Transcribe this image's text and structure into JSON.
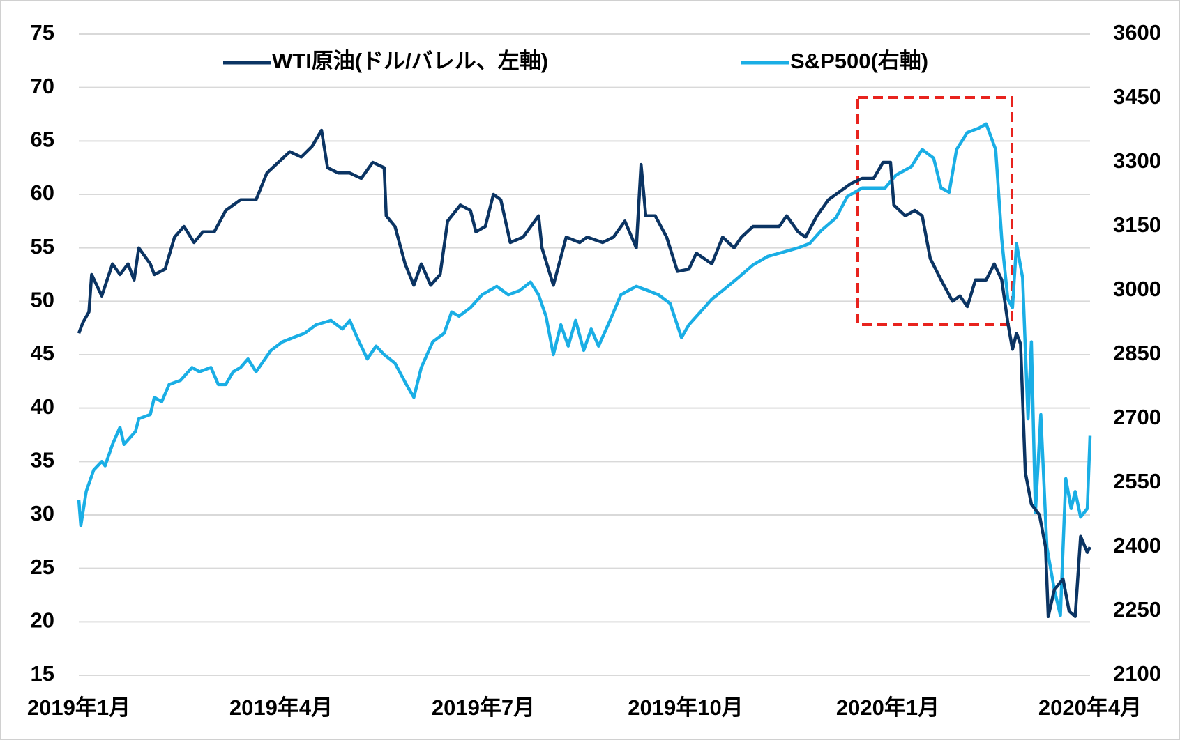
{
  "chart_data": {
    "type": "line",
    "xlim": [
      0,
      15
    ],
    "xticks": [
      {
        "value": 0,
        "label": "2019年1月"
      },
      {
        "value": 3,
        "label": "2019年4月"
      },
      {
        "value": 6,
        "label": "2019年7月"
      },
      {
        "value": 9,
        "label": "2019年10月"
      },
      {
        "value": 12,
        "label": "2020年1月"
      },
      {
        "value": 15,
        "label": "2020年4月"
      }
    ],
    "ylim": [
      15,
      75
    ],
    "yticks": [
      15,
      20,
      25,
      30,
      35,
      40,
      45,
      50,
      55,
      60,
      65,
      70,
      75
    ],
    "y2lim": [
      2100,
      3600
    ],
    "y2ticks": [
      2100,
      2250,
      2400,
      2550,
      2700,
      2850,
      3000,
      3150,
      3300,
      3450,
      3600
    ],
    "grid": true,
    "legend": "top",
    "series": [
      {
        "name": "WTI原油(ドル/バレル、左軸)",
        "color": "#0b3463",
        "axis": "y",
        "x": [
          0,
          0.06,
          0.15,
          0.19,
          0.34,
          0.5,
          0.61,
          0.73,
          0.82,
          0.89,
          1.06,
          1.12,
          1.28,
          1.42,
          1.56,
          1.71,
          1.84,
          2.01,
          2.18,
          2.4,
          2.63,
          2.79,
          2.96,
          3.13,
          3.3,
          3.46,
          3.6,
          3.69,
          3.85,
          4.02,
          4.19,
          4.36,
          4.53,
          4.56,
          4.69,
          4.84,
          4.97,
          5.08,
          5.22,
          5.36,
          5.47,
          5.66,
          5.81,
          5.89,
          6.03,
          6.15,
          6.26,
          6.4,
          6.59,
          6.82,
          6.87,
          7.04,
          7.23,
          7.43,
          7.54,
          7.77,
          7.93,
          8.1,
          8.27,
          8.34,
          8.41,
          8.55,
          8.72,
          8.88,
          9.05,
          9.16,
          9.39,
          9.55,
          9.72,
          9.83,
          10,
          10.22,
          10.39,
          10.5,
          10.67,
          10.78,
          10.95,
          11.12,
          11.34,
          11.45,
          11.62,
          11.79,
          11.93,
          12.04,
          12.09,
          12.26,
          12.4,
          12.51,
          12.63,
          12.79,
          12.96,
          13.07,
          13.18,
          13.3,
          13.46,
          13.58,
          13.69,
          13.78,
          13.85,
          13.91,
          13.97,
          14.04,
          14.13,
          14.25,
          14.34,
          14.38,
          14.47,
          14.6,
          14.69,
          14.78,
          14.86,
          14.96,
          15
        ],
        "values": [
          47,
          48,
          49,
          52.5,
          50.5,
          53.5,
          52.5,
          53.5,
          52,
          55,
          53.5,
          52.5,
          53,
          56,
          57,
          55.5,
          56.5,
          56.5,
          58.5,
          59.5,
          59.5,
          62,
          63,
          64,
          63.5,
          64.5,
          66,
          62.5,
          62,
          62,
          61.5,
          63,
          62.5,
          58,
          57,
          53.5,
          51.5,
          53.5,
          51.5,
          52.5,
          57.5,
          59,
          58.5,
          56.5,
          57,
          60,
          59.5,
          55.5,
          56,
          58,
          55,
          51.5,
          56,
          55.5,
          56,
          55.5,
          56,
          57.5,
          55,
          62.8,
          58,
          58,
          56,
          52.8,
          53,
          54.5,
          53.5,
          56,
          55,
          56,
          57,
          57,
          57,
          58,
          56.5,
          56,
          58,
          59.5,
          60.5,
          61,
          61.5,
          61.5,
          63,
          63,
          59,
          58,
          58.5,
          58,
          54,
          52,
          50,
          50.5,
          49.5,
          52,
          52,
          53.5,
          52,
          48,
          45.5,
          47,
          46,
          34,
          31,
          30,
          27,
          20.5,
          23,
          24,
          21,
          20.5,
          28,
          26.5,
          27
        ]
      },
      {
        "name": "S&P500(右軸)",
        "color": "#1aaee5",
        "axis": "y2",
        "x": [
          0,
          0.03,
          0.11,
          0.22,
          0.34,
          0.39,
          0.5,
          0.61,
          0.67,
          0.84,
          0.89,
          1.06,
          1.12,
          1.23,
          1.34,
          1.51,
          1.68,
          1.79,
          1.96,
          2.07,
          2.18,
          2.29,
          2.4,
          2.51,
          2.63,
          2.85,
          3.02,
          3.18,
          3.35,
          3.52,
          3.74,
          3.91,
          4.02,
          4.13,
          4.28,
          4.41,
          4.53,
          4.69,
          4.86,
          4.97,
          5.08,
          5.25,
          5.42,
          5.53,
          5.64,
          5.81,
          5.98,
          6.2,
          6.37,
          6.54,
          6.7,
          6.82,
          6.93,
          7.04,
          7.15,
          7.26,
          7.37,
          7.49,
          7.6,
          7.71,
          7.88,
          8.04,
          8.27,
          8.44,
          8.6,
          8.77,
          8.94,
          9.05,
          9.22,
          9.39,
          9.55,
          9.78,
          10,
          10.22,
          10.45,
          10.67,
          10.84,
          11.01,
          11.23,
          11.4,
          11.62,
          11.79,
          11.96,
          12.12,
          12.35,
          12.51,
          12.68,
          12.79,
          12.91,
          13.02,
          13.18,
          13.35,
          13.46,
          13.6,
          13.69,
          13.78,
          13.85,
          13.91,
          14,
          14.08,
          14.13,
          14.19,
          14.27,
          14.36,
          14.47,
          14.56,
          14.64,
          14.72,
          14.78,
          14.86,
          14.96,
          15
        ],
        "values": [
          2510,
          2450,
          2530,
          2580,
          2600,
          2590,
          2640,
          2680,
          2640,
          2670,
          2700,
          2710,
          2750,
          2740,
          2780,
          2790,
          2820,
          2810,
          2820,
          2780,
          2780,
          2810,
          2820,
          2840,
          2810,
          2860,
          2880,
          2890,
          2900,
          2920,
          2930,
          2910,
          2930,
          2890,
          2840,
          2870,
          2850,
          2830,
          2780,
          2750,
          2820,
          2880,
          2900,
          2950,
          2940,
          2960,
          2990,
          3010,
          2990,
          3000,
          3020,
          2990,
          2940,
          2850,
          2920,
          2870,
          2930,
          2860,
          2910,
          2870,
          2930,
          2990,
          3010,
          3000,
          2990,
          2970,
          2890,
          2920,
          2950,
          2980,
          3000,
          3030,
          3060,
          3080,
          3090,
          3100,
          3110,
          3140,
          3170,
          3220,
          3240,
          3240,
          3240,
          3270,
          3290,
          3330,
          3310,
          3240,
          3230,
          3330,
          3370,
          3380,
          3390,
          3330,
          3120,
          2980,
          2960,
          3110,
          3030,
          2700,
          2880,
          2480,
          2710,
          2400,
          2300,
          2240,
          2560,
          2490,
          2530,
          2470,
          2490,
          2660
        ]
      }
    ]
  }
}
